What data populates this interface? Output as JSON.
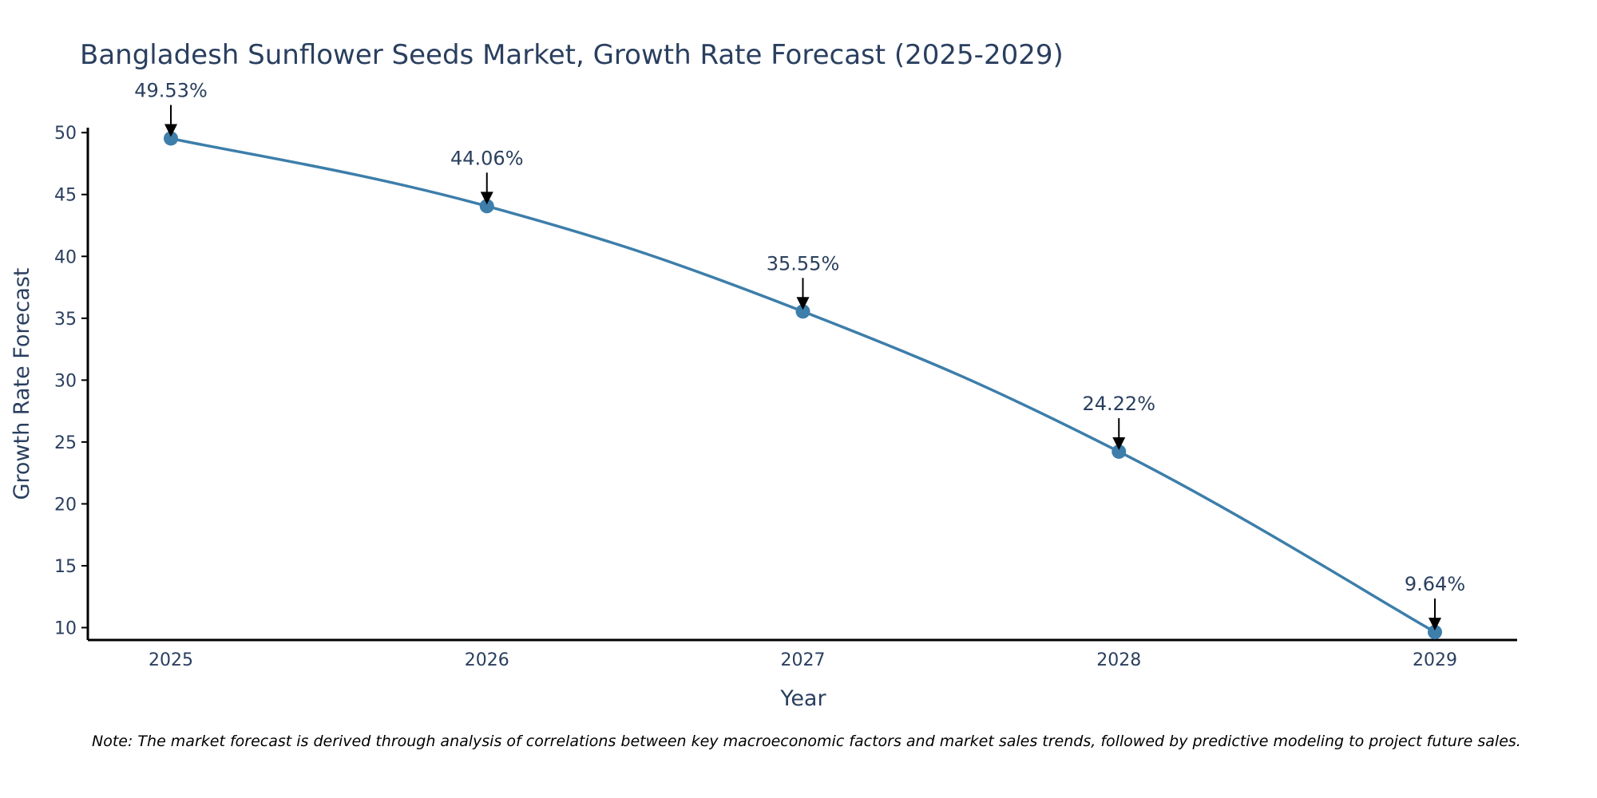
{
  "chart_data": {
    "type": "line",
    "title": "Bangladesh Sunflower Seeds Market, Growth Rate Forecast (2025-2029)",
    "xlabel": "Year",
    "ylabel": "Growth Rate Forecast",
    "categories": [
      "2025",
      "2026",
      "2027",
      "2028",
      "2029"
    ],
    "values": [
      49.53,
      44.06,
      35.55,
      24.22,
      9.64
    ],
    "data_labels": [
      "49.53%",
      "44.06%",
      "35.55%",
      "24.22%",
      "9.64%"
    ],
    "y_ticks": [
      10,
      15,
      20,
      25,
      30,
      35,
      40,
      45,
      50
    ],
    "ylim": [
      9,
      50.4
    ],
    "grid": false,
    "line_color": "#3d7eaa",
    "marker_color": "#3d7eaa",
    "arrow_color": "#000000",
    "axis_color": "#000000",
    "text_color": "#2a3f5f"
  },
  "note": "Note: The market forecast is derived through analysis of correlations between key macroeconomic factors and market sales trends, followed by predictive modeling to project future sales."
}
